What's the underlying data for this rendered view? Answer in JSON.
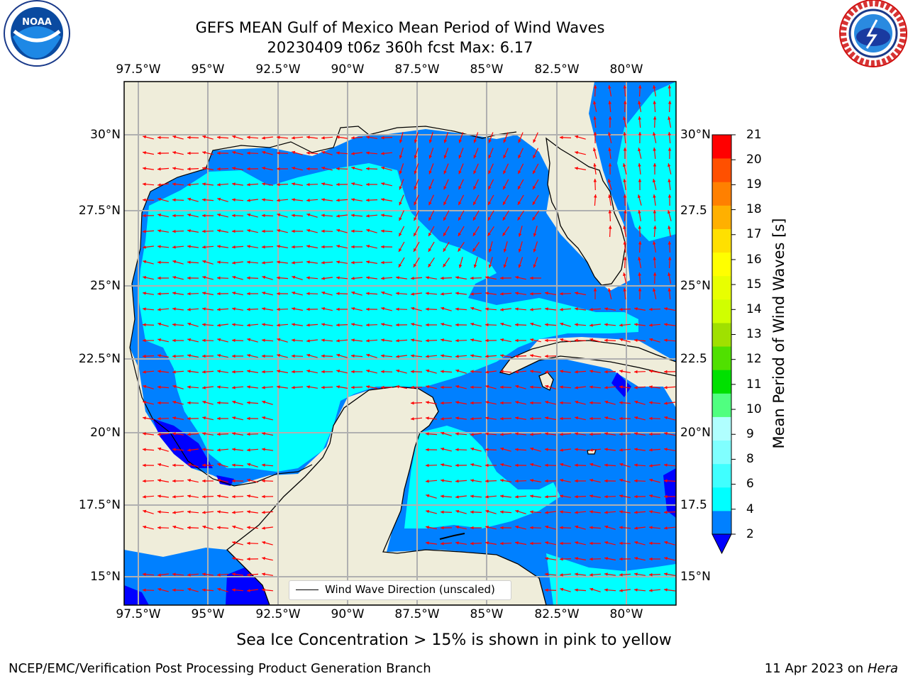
{
  "header": {
    "title_line1": "GEFS MEAN Gulf of Mexico Mean Period of Wind Waves",
    "title_line2": "20230409 t06z 360h fcst   Max: 6.17"
  },
  "map": {
    "lon_labels": [
      "97.5°W",
      "95°W",
      "92.5°W",
      "90°W",
      "87.5°W",
      "85°W",
      "82.5°W",
      "80°W"
    ],
    "lat_labels_left": [
      "30°N",
      "27.5°N",
      "25°N",
      "22.5°N",
      "20°N",
      "17.5°N",
      "15°N"
    ],
    "lat_labels_right": [
      "30°N",
      "27.5",
      "25°N",
      "22.5",
      "20°N",
      "17.5",
      "15°N"
    ],
    "colors": {
      "land": "#efedda",
      "coast": "#000000",
      "grid": "#b0b0b0",
      "arrow": "#ff0000"
    },
    "legend_label": "Wind Wave Direction (unscaled)"
  },
  "colorbar": {
    "label": "Mean Period of Wind Waves [s]",
    "ticks": [
      "21",
      "20",
      "19",
      "18",
      "17",
      "16",
      "15",
      "14",
      "13",
      "12",
      "11",
      "10",
      "9",
      "8",
      "6",
      "4",
      "2"
    ],
    "colors_bottom_to_top": [
      "#0080ff",
      "#00ffff",
      "#40ffff",
      "#80ffff",
      "#b0ffff",
      "#50ff80",
      "#00e000",
      "#50e000",
      "#a0e000",
      "#d0ff00",
      "#e8ff00",
      "#ffff00",
      "#ffe000",
      "#ffb000",
      "#ff8000",
      "#ff5000",
      "#ff2000",
      "#ff0000"
    ],
    "under_color": "#0000ff"
  },
  "caption": "Sea Ice Concentration > 15% is shown in pink to yellow",
  "footer": {
    "left": "NCEP/EMC/Verification Post Processing Product Generation Branch",
    "right_date": "11 Apr 2023 on",
    "right_host": "Hera"
  },
  "logos": {
    "left": "noaa-logo",
    "right": "nws-logo"
  }
}
